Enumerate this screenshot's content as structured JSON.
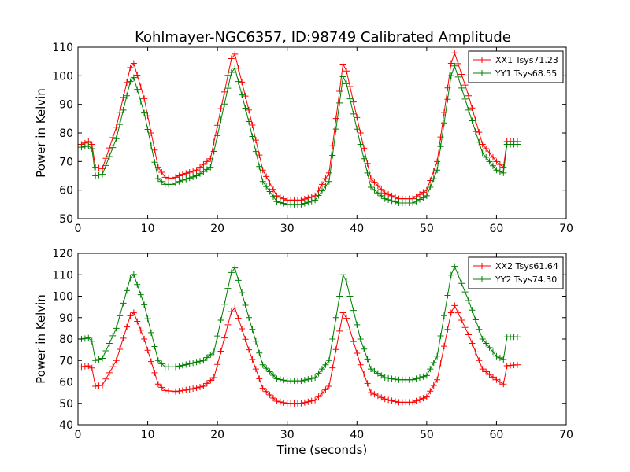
{
  "title": "Kohlmayer-NGC6357, ID:98749 Calibrated Amplitude",
  "chart_data": [
    {
      "type": "line",
      "ylabel": "Power in Kelvin",
      "xlabel": "",
      "xlim": [
        0,
        70
      ],
      "ylim": [
        50,
        110
      ],
      "xticks": [
        0,
        10,
        20,
        30,
        40,
        50,
        60,
        70
      ],
      "yticks": [
        50,
        60,
        70,
        80,
        90,
        100,
        110
      ],
      "legend_position": "top-right",
      "x_range": [
        0.5,
        63.0
      ],
      "x_step": 0.5,
      "series": [
        {
          "name": "XX1 Tsys71.23",
          "color": "#ff0000",
          "marker": "plus",
          "keypoints": [
            [
              0.5,
              76
            ],
            [
              1.5,
              77
            ],
            [
              2.0,
              76
            ],
            [
              2.5,
              68
            ],
            [
              3.5,
              67.5
            ],
            [
              5.5,
              82
            ],
            [
              7.8,
              106
            ],
            [
              9.5,
              92
            ],
            [
              11.5,
              68
            ],
            [
              12.5,
              64.5
            ],
            [
              13.5,
              64
            ],
            [
              15,
              65.5
            ],
            [
              17,
              67
            ],
            [
              19,
              71
            ],
            [
              22.3,
              109.5
            ],
            [
              24.5,
              88
            ],
            [
              26.5,
              67
            ],
            [
              28.5,
              58
            ],
            [
              30,
              56.5
            ],
            [
              32,
              56.5
            ],
            [
              34,
              58
            ],
            [
              36,
              66
            ],
            [
              38.1,
              106
            ],
            [
              40.5,
              80
            ],
            [
              42,
              64
            ],
            [
              44,
              59
            ],
            [
              46,
              57
            ],
            [
              48,
              57
            ],
            [
              50,
              60
            ],
            [
              51.5,
              70
            ],
            [
              53.8,
              109.5
            ],
            [
              56,
              93
            ],
            [
              58,
              76
            ],
            [
              60,
              70
            ],
            [
              61,
              68
            ],
            [
              61.4,
              77
            ],
            [
              63,
              77
            ]
          ]
        },
        {
          "name": "YY1 Tsys68.55",
          "color": "#008000",
          "marker": "plus",
          "keypoints": [
            [
              0.5,
              75
            ],
            [
              1.5,
              75.5
            ],
            [
              2.0,
              74.5
            ],
            [
              2.5,
              65
            ],
            [
              3.5,
              65.5
            ],
            [
              5.5,
              78
            ],
            [
              7.8,
              101
            ],
            [
              9.5,
              87
            ],
            [
              11.5,
              64
            ],
            [
              12.5,
              62
            ],
            [
              13.5,
              62
            ],
            [
              15,
              63.5
            ],
            [
              17,
              65
            ],
            [
              19,
              68
            ],
            [
              22.3,
              104.5
            ],
            [
              24.5,
              84
            ],
            [
              26.5,
              63
            ],
            [
              28.5,
              56
            ],
            [
              30,
              55
            ],
            [
              32,
              55
            ],
            [
              34,
              56.5
            ],
            [
              36,
              63
            ],
            [
              38.1,
              101.5
            ],
            [
              40.5,
              76
            ],
            [
              42,
              61
            ],
            [
              44,
              57
            ],
            [
              46,
              55.5
            ],
            [
              48,
              55.5
            ],
            [
              50,
              58
            ],
            [
              51.5,
              67
            ],
            [
              53.8,
              105
            ],
            [
              56,
              88
            ],
            [
              58,
              73
            ],
            [
              60,
              67
            ],
            [
              61,
              66
            ],
            [
              61.4,
              76
            ],
            [
              63,
              76
            ]
          ]
        }
      ]
    },
    {
      "type": "line",
      "ylabel": "Power in Kelvin",
      "xlabel": "Time (seconds)",
      "xlim": [
        0,
        70
      ],
      "ylim": [
        40,
        120
      ],
      "xticks": [
        0,
        10,
        20,
        30,
        40,
        50,
        60,
        70
      ],
      "yticks": [
        40,
        50,
        60,
        70,
        80,
        90,
        100,
        110,
        120
      ],
      "legend_position": "top-right",
      "x_range": [
        0.5,
        63.0
      ],
      "x_step": 0.5,
      "series": [
        {
          "name": "XX2 Tsys61.64",
          "color": "#ff0000",
          "marker": "plus",
          "keypoints": [
            [
              0.5,
              67
            ],
            [
              1.5,
              67.5
            ],
            [
              2.0,
              66.5
            ],
            [
              2.5,
              58
            ],
            [
              3.5,
              58.5
            ],
            [
              5.5,
              70
            ],
            [
              7.8,
              94
            ],
            [
              9.5,
              80
            ],
            [
              11.5,
              59
            ],
            [
              12.5,
              56
            ],
            [
              14,
              55.5
            ],
            [
              16,
              56.5
            ],
            [
              18,
              58
            ],
            [
              19.5,
              62
            ],
            [
              22.3,
              96.5
            ],
            [
              24.5,
              75
            ],
            [
              26.5,
              57
            ],
            [
              28.5,
              51
            ],
            [
              30,
              50
            ],
            [
              32,
              50
            ],
            [
              34,
              51.5
            ],
            [
              36,
              58
            ],
            [
              38.1,
              94
            ],
            [
              40.5,
              68
            ],
            [
              42,
              55
            ],
            [
              44,
              52
            ],
            [
              46,
              50.5
            ],
            [
              48,
              50.5
            ],
            [
              50,
              53
            ],
            [
              51.5,
              61
            ],
            [
              53.8,
              97
            ],
            [
              56,
              82
            ],
            [
              58,
              66
            ],
            [
              60,
              61
            ],
            [
              61,
              59
            ],
            [
              61.4,
              67.5
            ],
            [
              63,
              68
            ]
          ]
        },
        {
          "name": "YY2 Tsys74.30",
          "color": "#008000",
          "marker": "plus",
          "keypoints": [
            [
              0.5,
              80
            ],
            [
              1.5,
              80.5
            ],
            [
              2.0,
              79
            ],
            [
              2.5,
              70
            ],
            [
              3.5,
              71
            ],
            [
              5.5,
              85
            ],
            [
              7.8,
              112
            ],
            [
              9.5,
              96
            ],
            [
              11.5,
              70
            ],
            [
              12.5,
              67
            ],
            [
              14,
              67
            ],
            [
              16,
              68.5
            ],
            [
              18,
              70
            ],
            [
              19.5,
              74
            ],
            [
              22.3,
              115.5
            ],
            [
              24.5,
              90
            ],
            [
              26.5,
              68
            ],
            [
              28.5,
              61.5
            ],
            [
              30,
              60.5
            ],
            [
              32,
              60.5
            ],
            [
              34,
              62
            ],
            [
              36,
              70
            ],
            [
              38.1,
              112
            ],
            [
              40.5,
              80
            ],
            [
              42,
              66
            ],
            [
              44,
              62
            ],
            [
              46,
              61
            ],
            [
              48,
              61
            ],
            [
              50,
              63
            ],
            [
              51.5,
              72
            ],
            [
              53.8,
              115.5
            ],
            [
              56,
              98
            ],
            [
              58,
              80
            ],
            [
              60,
              72
            ],
            [
              61,
              70.5
            ],
            [
              61.4,
              81
            ],
            [
              63,
              81
            ]
          ]
        }
      ]
    }
  ]
}
